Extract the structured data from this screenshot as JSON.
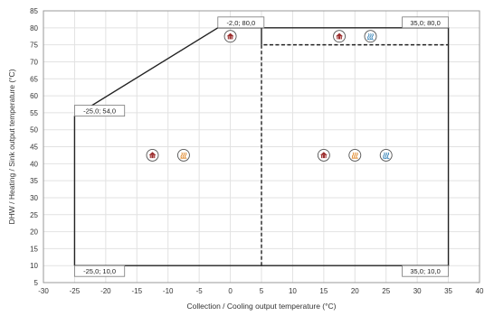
{
  "chart_data": {
    "type": "line",
    "title": "",
    "xlabel": "Collection / Cooling output temperature (°C)",
    "ylabel": "DHW / Heating / Sink output temperature (°C)",
    "xlim": [
      -30,
      40
    ],
    "ylim": [
      5,
      85
    ],
    "x_ticks": [
      -30,
      -25,
      -20,
      -15,
      -10,
      -5,
      0,
      5,
      10,
      15,
      20,
      25,
      30,
      35,
      40
    ],
    "y_ticks": [
      5,
      10,
      15,
      20,
      25,
      30,
      35,
      40,
      45,
      50,
      55,
      60,
      65,
      70,
      75,
      80,
      85
    ],
    "grid": true,
    "series": [
      {
        "style": "solid",
        "points": [
          [
            -25,
            10
          ],
          [
            -25,
            54
          ],
          [
            -2,
            80
          ],
          [
            35,
            80
          ],
          [
            35,
            10
          ],
          [
            -25,
            10
          ]
        ]
      },
      {
        "style": "dashed",
        "points": [
          [
            5,
            10
          ],
          [
            5,
            75
          ],
          [
            35,
            75
          ]
        ]
      },
      {
        "style": "solid",
        "points": [
          [
            5,
            75
          ],
          [
            5,
            80
          ]
        ]
      }
    ],
    "annotations": [
      {
        "label": "-2,0; 80,0",
        "x": -2,
        "y": 80,
        "anchor": "above-right"
      },
      {
        "label": "35,0; 80,0",
        "x": 35,
        "y": 80,
        "anchor": "above-left"
      },
      {
        "label": "-25,0; 54,0",
        "x": -25,
        "y": 54,
        "anchor": "above-right"
      },
      {
        "label": "-25,0; 10,0",
        "x": -25,
        "y": 10,
        "anchor": "below-right"
      },
      {
        "label": "35,0; 10,0",
        "x": 35,
        "y": 10,
        "anchor": "below-left"
      }
    ],
    "markers": [
      {
        "icon": "house-icon",
        "x": 0,
        "y": 77.5,
        "color": "#9b2c2c"
      },
      {
        "icon": "house-icon",
        "x": 17.5,
        "y": 77.5,
        "color": "#9b2c2c"
      },
      {
        "icon": "hot-water-icon",
        "x": 22.5,
        "y": 77.5,
        "color": "#2f7fb5"
      },
      {
        "icon": "house-icon",
        "x": -12.5,
        "y": 42.5,
        "color": "#9b2c2c"
      },
      {
        "icon": "heating-icon",
        "x": -7.5,
        "y": 42.5,
        "color": "#e0882a"
      },
      {
        "icon": "house-icon",
        "x": 15,
        "y": 42.5,
        "color": "#9b2c2c"
      },
      {
        "icon": "heating-icon",
        "x": 20,
        "y": 42.5,
        "color": "#e0882a"
      },
      {
        "icon": "hot-water-icon",
        "x": 25,
        "y": 42.5,
        "color": "#2f7fb5"
      }
    ]
  }
}
